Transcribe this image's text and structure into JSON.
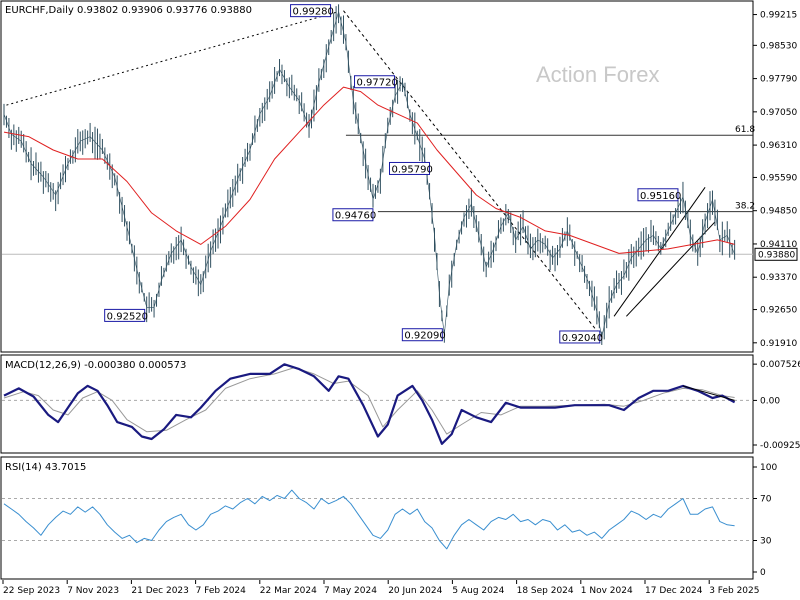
{
  "chart_data": [
    {
      "type": "line",
      "panel": "price",
      "title": "EURCHF,Daily  0.93802 0.93906 0.93776 0.93880",
      "watermark": "Action Forex",
      "x_ticks": [
        "22 Sep 2023",
        "7 Nov 2023",
        "21 Dec 2023",
        "7 Feb 2024",
        "22 Mar 2024",
        "7 May 2024",
        "20 Jun 2024",
        "5 Aug 2024",
        "18 Sep 2024",
        "1 Nov 2024",
        "17 Dec 2024",
        "3 Feb 2025"
      ],
      "y_ticks": [
        "0.99215",
        "0.98530",
        "0.97790",
        "0.97050",
        "0.96310",
        "0.95590",
        "0.94850",
        "0.94110",
        "0.93370",
        "0.92650",
        "0.91910"
      ],
      "ylim": [
        0.9175,
        0.9945
      ],
      "current_price": "0.93880",
      "colors": {
        "price": "#2f4f5f",
        "ma": "#e02020",
        "grid": "#bbbbbb",
        "trend": "#000000",
        "badge": "#1a1aa6"
      },
      "price_series": [
        [
          0,
          0.97
        ],
        [
          3,
          0.9655
        ],
        [
          7,
          0.964
        ],
        [
          11,
          0.959
        ],
        [
          16,
          0.956
        ],
        [
          21,
          0.952
        ],
        [
          26,
          0.959
        ],
        [
          31,
          0.964
        ],
        [
          35,
          0.965
        ],
        [
          40,
          0.962
        ],
        [
          45,
          0.956
        ],
        [
          50,
          0.945
        ],
        [
          54,
          0.9355
        ],
        [
          58,
          0.927
        ],
        [
          61,
          0.927
        ],
        [
          64,
          0.933
        ],
        [
          68,
          0.939
        ],
        [
          72,
          0.942
        ],
        [
          76,
          0.936
        ],
        [
          80,
          0.932
        ],
        [
          84,
          0.9395
        ],
        [
          88,
          0.945
        ],
        [
          92,
          0.951
        ],
        [
          96,
          0.957
        ],
        [
          100,
          0.962
        ],
        [
          104,
          0.97
        ],
        [
          108,
          0.974
        ],
        [
          112,
          0.98
        ],
        [
          116,
          0.976
        ],
        [
          120,
          0.973
        ],
        [
          124,
          0.967
        ],
        [
          128,
          0.977
        ],
        [
          132,
          0.985
        ],
        [
          136,
          0.9928
        ],
        [
          139,
          0.986
        ],
        [
          142,
          0.973
        ],
        [
          146,
          0.962
        ],
        [
          150,
          0.951
        ],
        [
          153,
          0.956
        ],
        [
          156,
          0.967
        ],
        [
          159,
          0.974
        ],
        [
          162,
          0.9772
        ],
        [
          165,
          0.97
        ],
        [
          168,
          0.965
        ],
        [
          171,
          0.96
        ],
        [
          173,
          0.952
        ],
        [
          175,
          0.943
        ],
        [
          177,
          0.93
        ],
        [
          179,
          0.9209
        ],
        [
          181,
          0.932
        ],
        [
          184,
          0.941
        ],
        [
          187,
          0.947
        ],
        [
          190,
          0.95
        ],
        [
          193,
          0.943
        ],
        [
          196,
          0.936
        ],
        [
          199,
          0.94
        ],
        [
          202,
          0.945
        ],
        [
          205,
          0.948
        ],
        [
          208,
          0.942
        ],
        [
          211,
          0.945
        ],
        [
          214,
          0.94
        ],
        [
          217,
          0.942
        ],
        [
          220,
          0.941
        ],
        [
          223,
          0.938
        ],
        [
          226,
          0.94
        ],
        [
          229,
          0.944
        ],
        [
          232,
          0.94
        ],
        [
          235,
          0.936
        ],
        [
          238,
          0.932
        ],
        [
          241,
          0.926
        ],
        [
          243,
          0.9204
        ],
        [
          246,
          0.928
        ],
        [
          249,
          0.932
        ],
        [
          252,
          0.934
        ],
        [
          255,
          0.938
        ],
        [
          258,
          0.94
        ],
        [
          261,
          0.942
        ],
        [
          264,
          0.943
        ],
        [
          267,
          0.94
        ],
        [
          270,
          0.944
        ],
        [
          273,
          0.948
        ],
        [
          276,
          0.9516
        ],
        [
          279,
          0.943
        ],
        [
          282,
          0.939
        ],
        [
          285,
          0.946
        ],
        [
          288,
          0.951
        ],
        [
          291,
          0.942
        ],
        [
          294,
          0.943
        ],
        [
          297,
          0.9388
        ]
      ],
      "ma_series": [
        [
          0,
          0.966
        ],
        [
          10,
          0.965
        ],
        [
          20,
          0.962
        ],
        [
          30,
          0.96
        ],
        [
          40,
          0.96
        ],
        [
          50,
          0.955
        ],
        [
          60,
          0.948
        ],
        [
          70,
          0.944
        ],
        [
          80,
          0.941
        ],
        [
          90,
          0.945
        ],
        [
          100,
          0.951
        ],
        [
          110,
          0.96
        ],
        [
          120,
          0.966
        ],
        [
          130,
          0.972
        ],
        [
          138,
          0.976
        ],
        [
          145,
          0.975
        ],
        [
          152,
          0.972
        ],
        [
          160,
          0.97
        ],
        [
          168,
          0.968
        ],
        [
          176,
          0.962
        ],
        [
          184,
          0.957
        ],
        [
          192,
          0.952
        ],
        [
          200,
          0.949
        ],
        [
          210,
          0.947
        ],
        [
          220,
          0.944
        ],
        [
          230,
          0.943
        ],
        [
          240,
          0.941
        ],
        [
          250,
          0.939
        ],
        [
          260,
          0.9395
        ],
        [
          270,
          0.94
        ],
        [
          280,
          0.941
        ],
        [
          290,
          0.942
        ],
        [
          297,
          0.941
        ]
      ],
      "annotations": [
        {
          "label": "0.99280",
          "day": 136,
          "price": 0.9928
        },
        {
          "label": "0.97720",
          "day": 162,
          "price": 0.9772
        },
        {
          "label": "0.95790",
          "day": 175,
          "price": 0.9579
        },
        {
          "label": "0.95160",
          "day": 276,
          "price": 0.9516
        },
        {
          "label": "0.94760",
          "day": 152,
          "price": 0.9476
        },
        {
          "label": "0.92520",
          "day": 58,
          "price": 0.9252
        },
        {
          "label": "0.92090",
          "day": 179,
          "price": 0.9209
        },
        {
          "label": "0.92040",
          "day": 243,
          "price": 0.9204
        }
      ],
      "fib_lines": [
        {
          "label": "61.8",
          "price": 0.9653,
          "from_day": 139
        },
        {
          "label": "38.2",
          "price": 0.9483,
          "from_day": 152
        }
      ]
    },
    {
      "type": "line",
      "panel": "macd",
      "title": "MACD(12,26,9) -0.000380 0.000573",
      "y_ticks": [
        "0.007526",
        "0.00",
        "-0.009252"
      ],
      "ylim": [
        -0.0105,
        0.0088
      ],
      "colors": {
        "macd": "#1a1a80",
        "signal": "#999999"
      },
      "macd_series": [
        [
          0,
          0.001
        ],
        [
          6,
          0.0025
        ],
        [
          12,
          0.0008
        ],
        [
          18,
          -0.003
        ],
        [
          22,
          -0.0045
        ],
        [
          26,
          -0.0015
        ],
        [
          30,
          0.0015
        ],
        [
          34,
          0.003
        ],
        [
          38,
          0.002
        ],
        [
          42,
          -0.001
        ],
        [
          46,
          -0.0045
        ],
        [
          52,
          -0.0055
        ],
        [
          56,
          -0.0075
        ],
        [
          60,
          -0.008
        ],
        [
          65,
          -0.006
        ],
        [
          70,
          -0.003
        ],
        [
          76,
          -0.0035
        ],
        [
          80,
          -0.0015
        ],
        [
          86,
          0.002
        ],
        [
          92,
          0.0045
        ],
        [
          100,
          0.0055
        ],
        [
          108,
          0.0055
        ],
        [
          114,
          0.0075
        ],
        [
          120,
          0.0065
        ],
        [
          126,
          0.005
        ],
        [
          132,
          0.002
        ],
        [
          136,
          0.005
        ],
        [
          140,
          0.0045
        ],
        [
          146,
          -0.001
        ],
        [
          152,
          -0.0075
        ],
        [
          156,
          -0.005
        ],
        [
          160,
          0.001
        ],
        [
          166,
          0.003
        ],
        [
          170,
          0.0
        ],
        [
          174,
          -0.004
        ],
        [
          178,
          -0.009
        ],
        [
          182,
          -0.007
        ],
        [
          186,
          -0.002
        ],
        [
          192,
          -0.0035
        ],
        [
          198,
          -0.0045
        ],
        [
          204,
          -0.0005
        ],
        [
          210,
          -0.0015
        ],
        [
          216,
          -0.0015
        ],
        [
          224,
          -0.0015
        ],
        [
          232,
          -0.001
        ],
        [
          240,
          -0.001
        ],
        [
          246,
          -0.001
        ],
        [
          252,
          -0.002
        ],
        [
          258,
          0.0005
        ],
        [
          264,
          0.002
        ],
        [
          270,
          0.002
        ],
        [
          276,
          0.003
        ],
        [
          282,
          0.002
        ],
        [
          288,
          0.0005
        ],
        [
          292,
          0.001
        ],
        [
          297,
          -0.0004
        ]
      ],
      "signal_series": [
        [
          0,
          0.0005
        ],
        [
          8,
          0.0018
        ],
        [
          14,
          0.001
        ],
        [
          20,
          -0.002
        ],
        [
          26,
          -0.003
        ],
        [
          32,
          0.0005
        ],
        [
          38,
          0.0018
        ],
        [
          44,
          0.0
        ],
        [
          50,
          -0.004
        ],
        [
          58,
          -0.0065
        ],
        [
          66,
          -0.0062
        ],
        [
          74,
          -0.004
        ],
        [
          82,
          -0.002
        ],
        [
          90,
          0.0025
        ],
        [
          100,
          0.0045
        ],
        [
          110,
          0.0055
        ],
        [
          118,
          0.0068
        ],
        [
          126,
          0.0055
        ],
        [
          134,
          0.0035
        ],
        [
          140,
          0.004
        ],
        [
          148,
          0.001
        ],
        [
          154,
          -0.0055
        ],
        [
          160,
          -0.002
        ],
        [
          168,
          0.002
        ],
        [
          174,
          -0.002
        ],
        [
          180,
          -0.007
        ],
        [
          186,
          -0.005
        ],
        [
          194,
          -0.0025
        ],
        [
          202,
          -0.003
        ],
        [
          210,
          -0.0012
        ],
        [
          220,
          -0.0012
        ],
        [
          232,
          -0.001
        ],
        [
          244,
          -0.0008
        ],
        [
          252,
          -0.0012
        ],
        [
          260,
          0.0
        ],
        [
          268,
          0.0015
        ],
        [
          276,
          0.0025
        ],
        [
          284,
          0.0022
        ],
        [
          292,
          0.001
        ],
        [
          297,
          0.0006
        ]
      ]
    },
    {
      "type": "line",
      "panel": "rsi",
      "title": "RSI(14) 43.7015",
      "y_ticks": [
        "100",
        "70",
        "30",
        "0"
      ],
      "ylim": [
        0,
        100
      ],
      "colors": {
        "rsi": "#3a8fd0"
      },
      "rsi_series": [
        [
          0,
          65
        ],
        [
          3,
          60
        ],
        [
          6,
          55
        ],
        [
          9,
          48
        ],
        [
          12,
          42
        ],
        [
          15,
          35
        ],
        [
          18,
          45
        ],
        [
          21,
          52
        ],
        [
          24,
          58
        ],
        [
          27,
          55
        ],
        [
          30,
          62
        ],
        [
          33,
          57
        ],
        [
          36,
          62
        ],
        [
          39,
          55
        ],
        [
          42,
          45
        ],
        [
          45,
          38
        ],
        [
          48,
          32
        ],
        [
          51,
          35
        ],
        [
          54,
          28
        ],
        [
          57,
          32
        ],
        [
          60,
          30
        ],
        [
          63,
          40
        ],
        [
          66,
          48
        ],
        [
          69,
          52
        ],
        [
          72,
          55
        ],
        [
          75,
          45
        ],
        [
          78,
          40
        ],
        [
          81,
          45
        ],
        [
          84,
          55
        ],
        [
          87,
          58
        ],
        [
          90,
          63
        ],
        [
          93,
          60
        ],
        [
          96,
          66
        ],
        [
          99,
          70
        ],
        [
          102,
          65
        ],
        [
          105,
          72
        ],
        [
          108,
          68
        ],
        [
          111,
          73
        ],
        [
          114,
          70
        ],
        [
          117,
          78
        ],
        [
          120,
          70
        ],
        [
          123,
          66
        ],
        [
          126,
          60
        ],
        [
          129,
          70
        ],
        [
          132,
          65
        ],
        [
          135,
          68
        ],
        [
          138,
          72
        ],
        [
          141,
          65
        ],
        [
          144,
          55
        ],
        [
          147,
          45
        ],
        [
          150,
          35
        ],
        [
          153,
          32
        ],
        [
          156,
          40
        ],
        [
          159,
          55
        ],
        [
          162,
          60
        ],
        [
          165,
          55
        ],
        [
          168,
          60
        ],
        [
          171,
          48
        ],
        [
          174,
          42
        ],
        [
          177,
          30
        ],
        [
          180,
          22
        ],
        [
          183,
          35
        ],
        [
          186,
          45
        ],
        [
          189,
          50
        ],
        [
          192,
          45
        ],
        [
          195,
          40
        ],
        [
          198,
          48
        ],
        [
          201,
          52
        ],
        [
          204,
          50
        ],
        [
          207,
          55
        ],
        [
          210,
          48
        ],
        [
          213,
          50
        ],
        [
          216,
          45
        ],
        [
          219,
          50
        ],
        [
          222,
          48
        ],
        [
          225,
          40
        ],
        [
          228,
          45
        ],
        [
          231,
          38
        ],
        [
          234,
          40
        ],
        [
          237,
          35
        ],
        [
          240,
          38
        ],
        [
          243,
          32
        ],
        [
          246,
          40
        ],
        [
          249,
          45
        ],
        [
          252,
          50
        ],
        [
          255,
          58
        ],
        [
          258,
          55
        ],
        [
          261,
          50
        ],
        [
          264,
          55
        ],
        [
          267,
          52
        ],
        [
          270,
          60
        ],
        [
          273,
          65
        ],
        [
          276,
          70
        ],
        [
          279,
          55
        ],
        [
          282,
          55
        ],
        [
          285,
          60
        ],
        [
          288,
          62
        ],
        [
          291,
          48
        ],
        [
          294,
          45
        ],
        [
          297,
          44
        ]
      ]
    }
  ]
}
